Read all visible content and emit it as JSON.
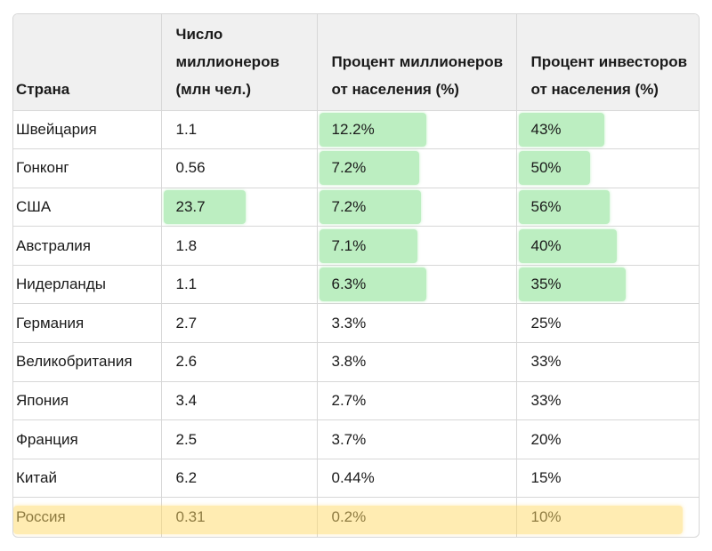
{
  "headers": [
    "Страна",
    "Число миллионеров (млн чел.)",
    "Процент миллионеров от населения (%)",
    "Процент инвесторов от населения (%)"
  ],
  "rows": [
    {
      "country": "Швейцария",
      "millionaires": "1.1",
      "millionaires_pct": "12.2%",
      "investors_pct": "43%"
    },
    {
      "country": "Гонконг",
      "millionaires": "0.56",
      "millionaires_pct": "7.2%",
      "investors_pct": "50%"
    },
    {
      "country": "США",
      "millionaires": "23.7",
      "millionaires_pct": "7.2%",
      "investors_pct": "56%"
    },
    {
      "country": "Австралия",
      "millionaires": "1.8",
      "millionaires_pct": "7.1%",
      "investors_pct": "40%"
    },
    {
      "country": "Нидерланды",
      "millionaires": "1.1",
      "millionaires_pct": "6.3%",
      "investors_pct": "35%"
    },
    {
      "country": "Германия",
      "millionaires": "2.7",
      "millionaires_pct": "3.3%",
      "investors_pct": "25%"
    },
    {
      "country": "Великобритания",
      "millionaires": "2.6",
      "millionaires_pct": "3.8%",
      "investors_pct": "33%"
    },
    {
      "country": "Япония",
      "millionaires": "3.4",
      "millionaires_pct": "2.7%",
      "investors_pct": "33%"
    },
    {
      "country": "Франция",
      "millionaires": "2.5",
      "millionaires_pct": "3.7%",
      "investors_pct": "20%"
    },
    {
      "country": "Китай",
      "millionaires": "6.2",
      "millionaires_pct": "0.44%",
      "investors_pct": "15%"
    },
    {
      "country": "Россия",
      "millionaires": "0.31",
      "millionaires_pct": "0.2%",
      "investors_pct": "10%"
    }
  ],
  "highlight_colors": {
    "green": "#7ade84",
    "yellow": "#ffda66"
  }
}
